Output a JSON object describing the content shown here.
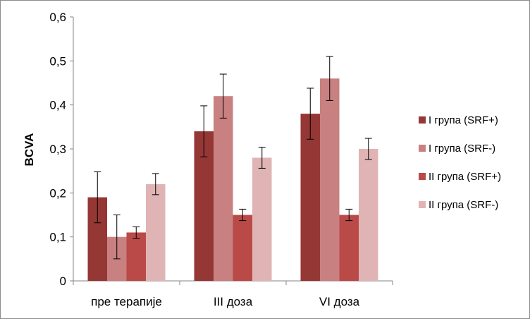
{
  "chart_data": {
    "type": "bar",
    "title": "",
    "xlabel": "",
    "ylabel": "BCVA",
    "ylim": [
      0,
      0.6
    ],
    "yticks": [
      "0",
      "0,1",
      "0,2",
      "0,3",
      "0,4",
      "0,5",
      "0,6"
    ],
    "categories": [
      "пре терапије",
      "III доза",
      "VI доза"
    ],
    "series": [
      {
        "name": "I група (SRF+)",
        "color": "#953735",
        "values": [
          0.19,
          0.34,
          0.38
        ],
        "errors": [
          0.058,
          0.058,
          0.058
        ]
      },
      {
        "name": "I група (SRF-)",
        "color": "#c98080",
        "values": [
          0.1,
          0.42,
          0.46
        ],
        "errors": [
          0.05,
          0.05,
          0.05
        ]
      },
      {
        "name": "II група (SRF+)",
        "color": "#b94a48",
        "values": [
          0.11,
          0.15,
          0.15
        ],
        "errors": [
          0.013,
          0.013,
          0.013
        ]
      },
      {
        "name": "II група (SRF-)",
        "color": "#e0b4b4",
        "values": [
          0.22,
          0.28,
          0.3
        ],
        "errors": [
          0.024,
          0.024,
          0.024
        ]
      }
    ],
    "grid": false,
    "legend": "right"
  }
}
